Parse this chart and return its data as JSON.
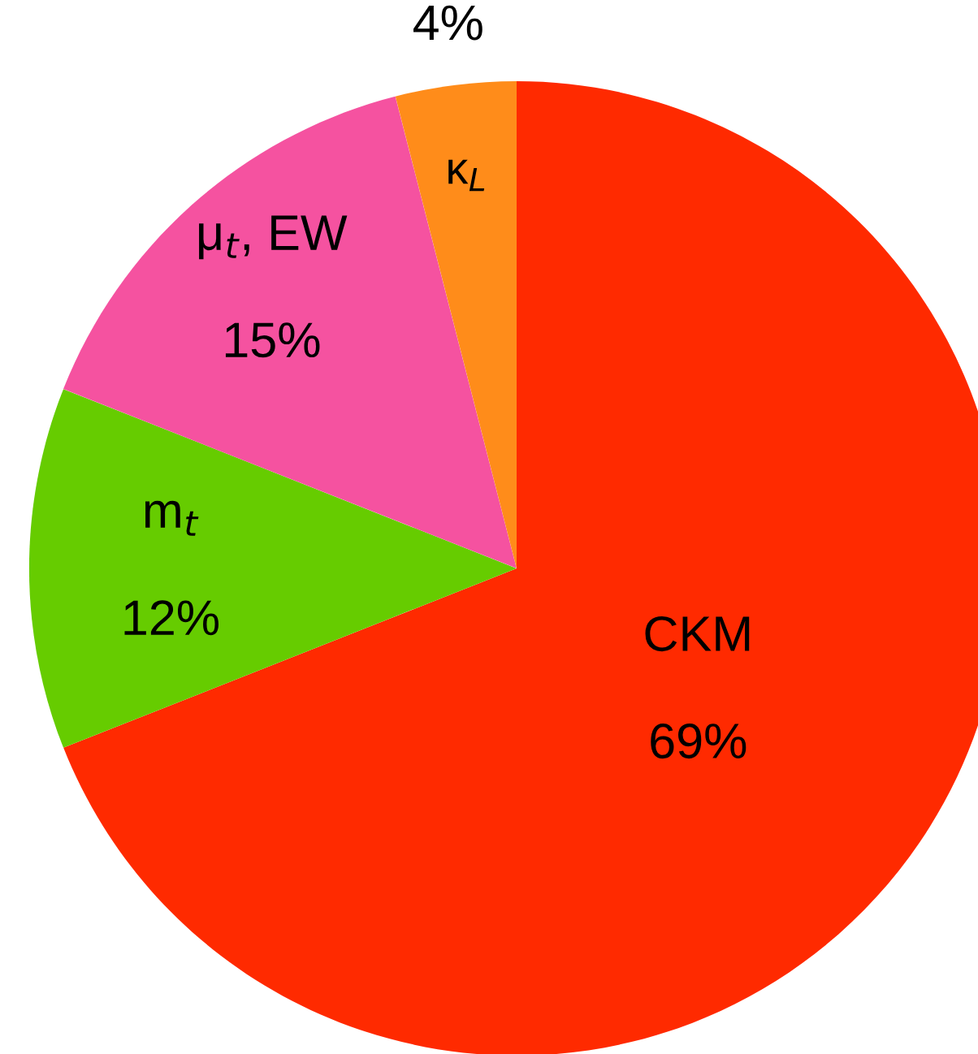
{
  "chart_data": {
    "type": "pie",
    "categories": [
      "CKM",
      "m$_{t}$",
      "μ$_{t}$, EW",
      "κ$_{L}$"
    ],
    "values": [
      69,
      12,
      15,
      4
    ],
    "value_labels": [
      "69%",
      "12%",
      "15%",
      "4%"
    ],
    "colors": [
      "#ff2a00",
      "#66cc00",
      "#f552a0",
      "#ff8c1a"
    ]
  }
}
